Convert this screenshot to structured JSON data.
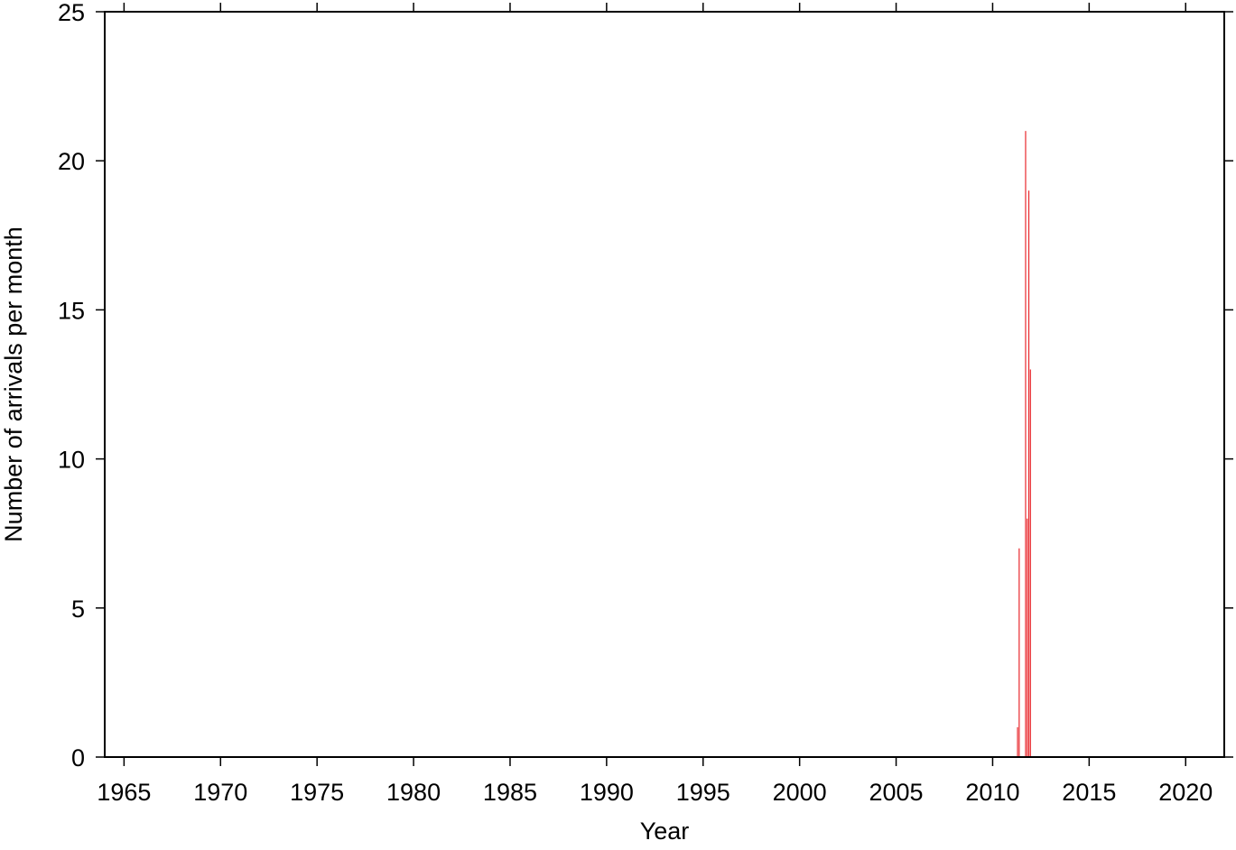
{
  "chart_data": {
    "type": "histogram",
    "x_label": "Year",
    "y_label": "Number of arrivals per month",
    "bins": [
      2011.25,
      2011.3333,
      2011.4167,
      2011.5,
      2011.5833,
      2011.6667,
      2011.75,
      2011.8333,
      2011.9167,
      2012.0
    ],
    "values": [
      1,
      7,
      0,
      0,
      0,
      21,
      8,
      19,
      13
    ],
    "color": "#e8262a",
    "xlim": [
      1964,
      2022
    ],
    "xticks": [
      1965,
      1970,
      1975,
      1980,
      1985,
      1990,
      1995,
      2000,
      2005,
      2010,
      2015,
      2020
    ],
    "ylim": [
      0,
      25
    ],
    "yticks": [
      0,
      5,
      10,
      15,
      20,
      25
    ],
    "grid": false
  }
}
